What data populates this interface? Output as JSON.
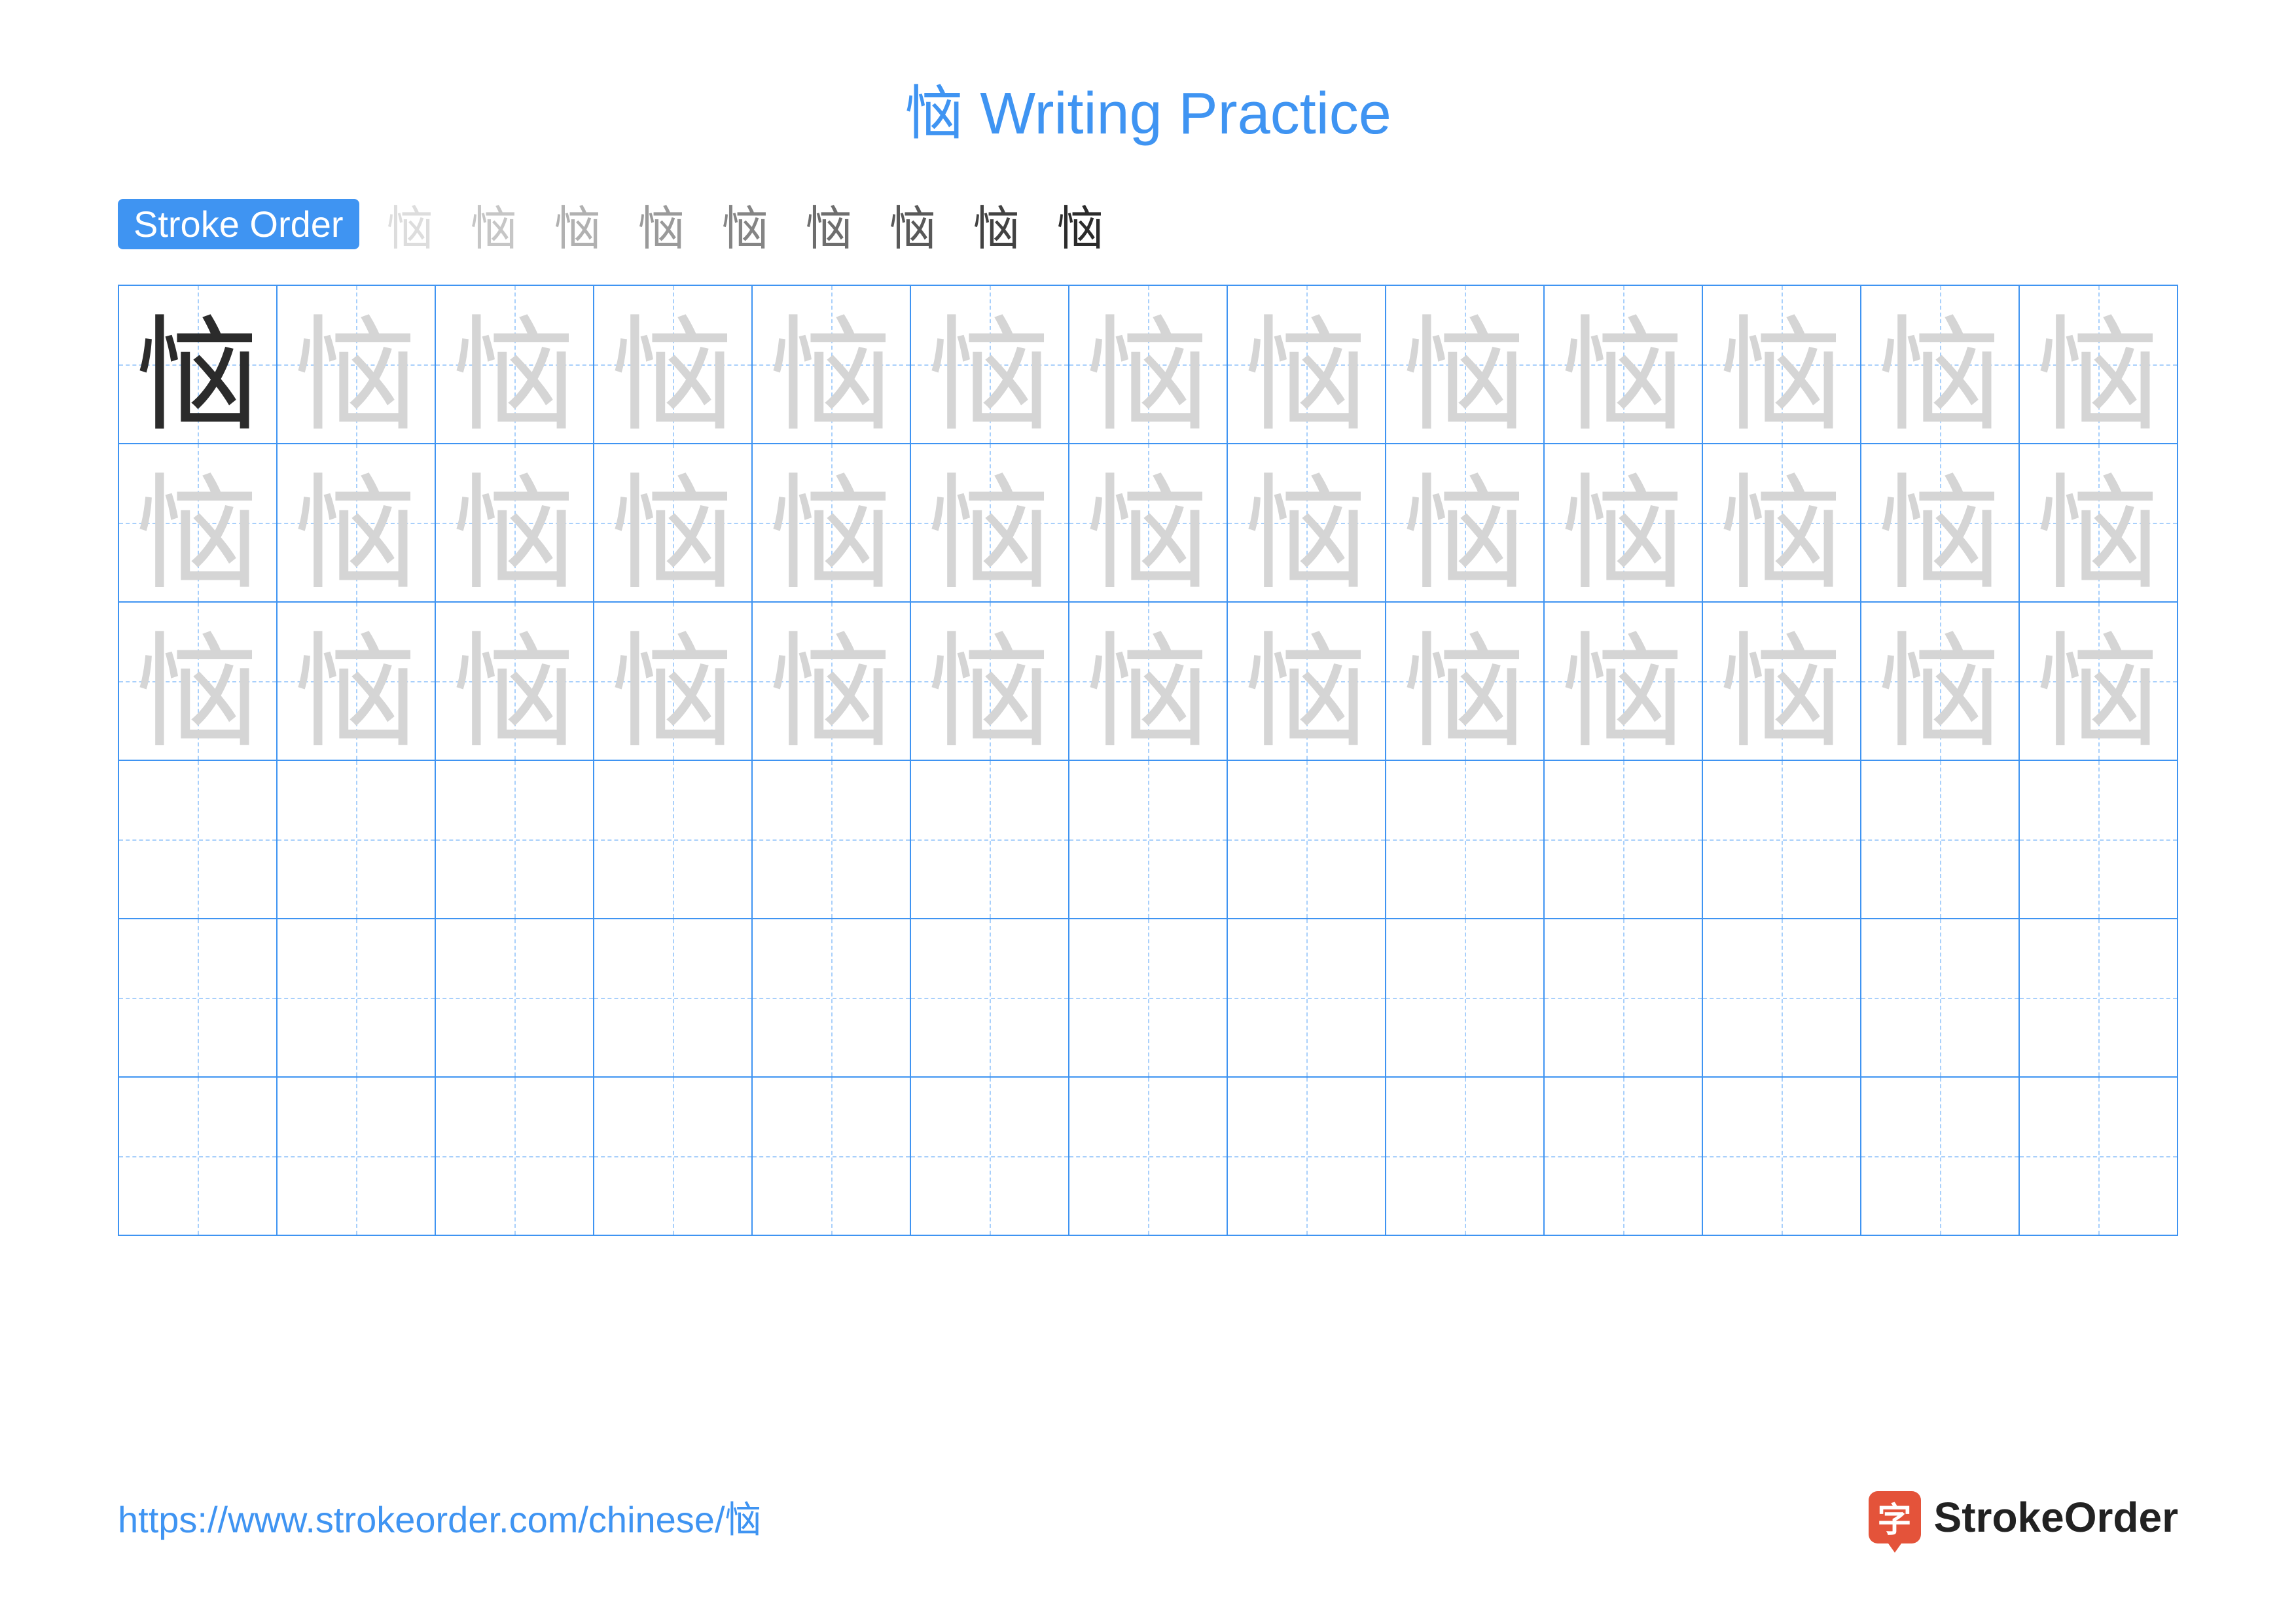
{
  "colors": {
    "primary_blue": "#3f94f2",
    "grid_border": "#3f94f2",
    "grid_dash": "#a9d0fb",
    "trace_gray": "#d5d5d5",
    "solid_black": "#2b2b2b",
    "brand_orange": "#e4533a",
    "url_blue": "#3f94f2"
  },
  "title": {
    "character": "恼",
    "suffix": " Writing Practice"
  },
  "stroke_order": {
    "label": "Stroke Order",
    "steps": [
      "忄",
      "忄",
      "忄",
      "忄",
      "忄",
      "忄",
      "恼",
      "恼",
      "恼"
    ],
    "display_char": "恼"
  },
  "grid": {
    "rows": 6,
    "cols": 13,
    "character": "恼",
    "solid_cell": {
      "row": 0,
      "col": 0
    },
    "trace_rows": 3
  },
  "footer": {
    "url": "https://www.strokeorder.com/chinese/恼",
    "brand_char": "字",
    "brand_text": "StrokeOrder"
  }
}
